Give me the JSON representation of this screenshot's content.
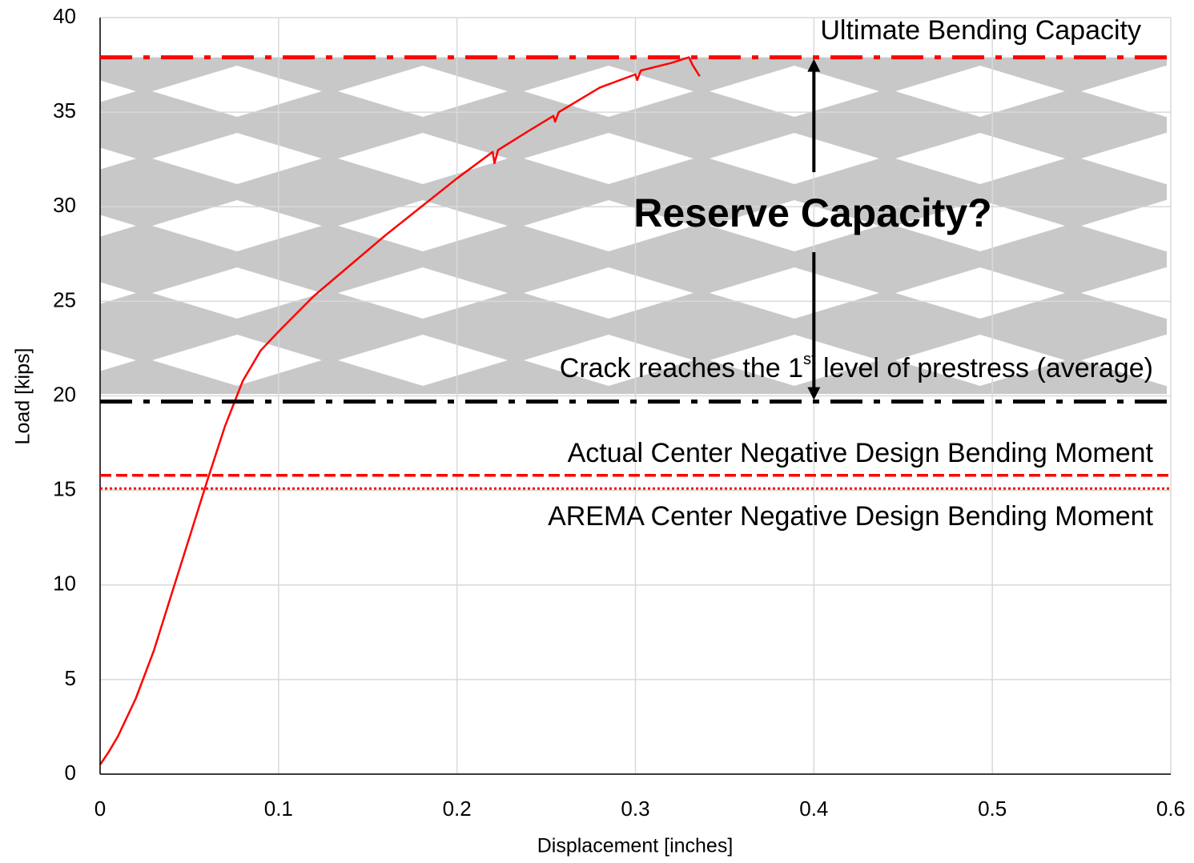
{
  "chart_data": {
    "type": "line",
    "x_label": "Displacement  [inches]",
    "y_label": "Load  [kips]",
    "xlim": [
      0,
      0.6
    ],
    "ylim": [
      0,
      40
    ],
    "xticks": [
      0,
      0.1,
      0.2,
      0.3,
      0.4,
      0.5,
      0.6
    ],
    "yticks": [
      0,
      5,
      10,
      15,
      20,
      25,
      30,
      35,
      40
    ],
    "grid": true,
    "x": [
      0,
      0.005,
      0.01,
      0.02,
      0.03,
      0.04,
      0.05,
      0.06,
      0.07,
      0.08,
      0.09,
      0.1,
      0.12,
      0.14,
      0.16,
      0.18,
      0.2,
      0.22,
      0.221,
      0.223,
      0.24,
      0.254,
      0.255,
      0.257,
      0.28,
      0.3,
      0.301,
      0.303,
      0.32,
      0.33,
      0.332,
      0.336
    ],
    "series": [
      {
        "color": "#ff0000",
        "values": [
          0.5,
          1.2,
          2,
          4,
          6.5,
          9.5,
          12.5,
          15.5,
          18.4,
          20.8,
          22.4,
          23.4,
          25.3,
          26.9,
          28.5,
          30,
          31.5,
          32.9,
          32.3,
          33,
          34,
          34.8,
          34.5,
          35,
          36.3,
          37,
          36.7,
          37.2,
          37.6,
          37.9,
          37.5,
          36.9
        ]
      }
    ],
    "shaded_range": [
      20.1,
      37.9
    ],
    "reference_lines": [
      {
        "label": "Ultimate Bending Capacity",
        "value": 37.9,
        "color": "#ff0000",
        "style": "dash-dot"
      },
      {
        "label_parts": [
          "Crack reaches the 1",
          "st",
          " level of prestress (average)"
        ],
        "value": 19.7,
        "color": "#000000",
        "style": "dash-dot"
      },
      {
        "label": "Actual Center Negative Design Bending Moment",
        "value": 15.8,
        "color": "#ff0000",
        "style": "dashed"
      },
      {
        "label": "AREMA Center Negative Design Bending Moment",
        "value": 15.1,
        "color": "#ff0000",
        "style": "dotted"
      }
    ],
    "annotation": "Reserve Capacity?"
  }
}
